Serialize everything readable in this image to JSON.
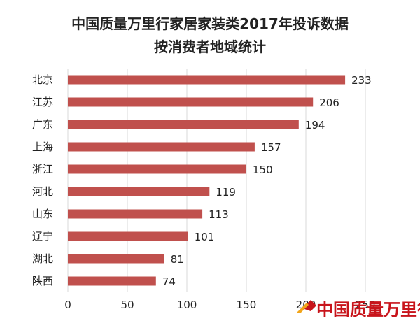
{
  "chart_data": {
    "type": "bar",
    "orientation": "horizontal",
    "title": "中国质量万里行家居家装类2017年投诉数据",
    "subtitle": "按消费者地域统计",
    "categories": [
      "北京",
      "江苏",
      "广东",
      "上海",
      "浙江",
      "河北",
      "山东",
      "辽宁",
      "湖北",
      "陕西"
    ],
    "values": [
      233,
      206,
      194,
      157,
      150,
      119,
      113,
      101,
      81,
      74
    ],
    "xlim": [
      0,
      250
    ],
    "xticks": [
      "0",
      "50",
      "100",
      "150",
      "200",
      "250"
    ],
    "grid": true,
    "bar_color": "#c0504d"
  },
  "watermark": {
    "text": "中国质量万里行",
    "color": "#c8141b"
  }
}
